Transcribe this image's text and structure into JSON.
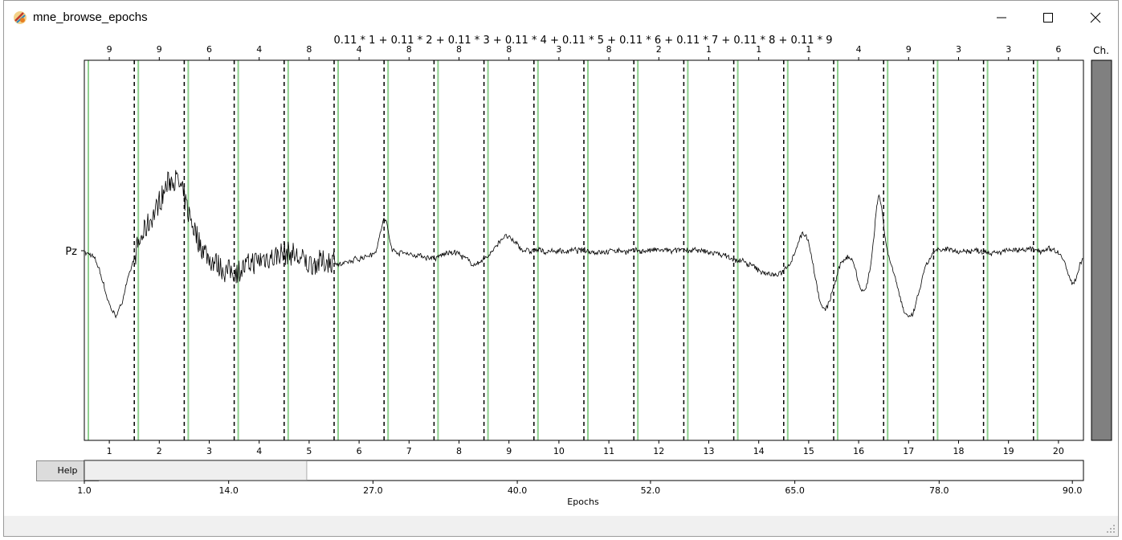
{
  "window": {
    "title": "mne_browse_epochs",
    "controls": [
      "minimize-icon",
      "maximize-icon",
      "close-icon"
    ]
  },
  "chart_data": {
    "type": "line",
    "title": "0.11 * 1 + 0.11 * 2 + 0.11 * 3 + 0.11 * 4 + 0.11 * 5 + 0.11 * 6 + 0.11 * 7 + 0.11 * 8 + 0.11 * 9",
    "channel_label": "Pz",
    "ch_scroll_label": "Ch.",
    "epoch_numbers": [
      "1",
      "2",
      "3",
      "4",
      "5",
      "6",
      "7",
      "8",
      "9",
      "10",
      "11",
      "12",
      "13",
      "14",
      "15",
      "16",
      "17",
      "18",
      "19",
      "20"
    ],
    "event_ids": [
      "9",
      "9",
      "6",
      "4",
      "8",
      "4",
      "8",
      "8",
      "8",
      "3",
      "8",
      "2",
      "1",
      "1",
      "1",
      "4",
      "9",
      "3",
      "3",
      "6"
    ],
    "colors": {
      "signal": "#000000",
      "event": "#90d090",
      "divider": "#000000",
      "scrollbar": "#808080"
    },
    "epoch_slider": {
      "xlabel": "Epochs",
      "ticks": [
        "1.0",
        "14.0",
        "27.0",
        "40.0",
        "52.0",
        "65.0",
        "78.0",
        "90.0"
      ],
      "tick_values": [
        1,
        14,
        27,
        40,
        52,
        65,
        78,
        90
      ],
      "range": [
        1,
        91
      ],
      "visible_window": [
        1,
        21
      ]
    }
  },
  "help_button": {
    "label": "Help"
  }
}
